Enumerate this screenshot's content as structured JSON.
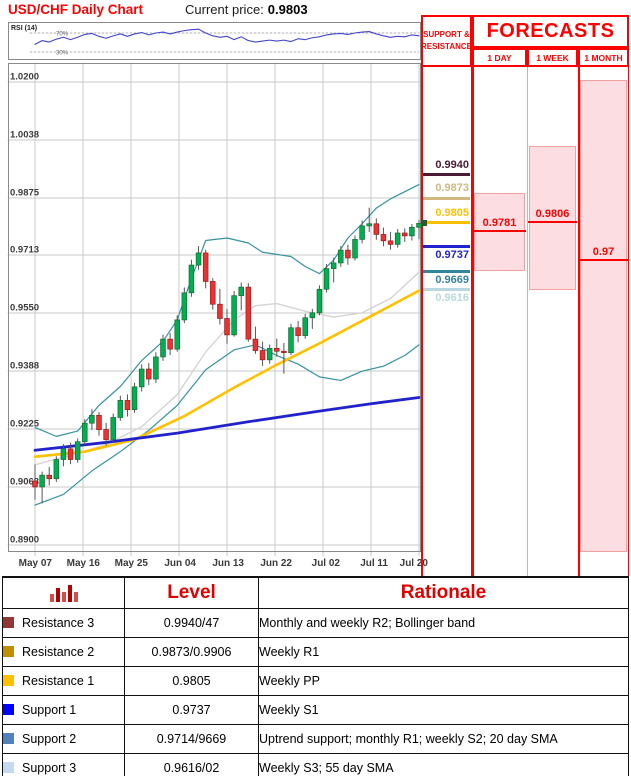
{
  "header": {
    "title": "USD/CHF Daily Chart",
    "current_price_label": "Current price:",
    "current_price": "0.9803"
  },
  "rsi_panel": {
    "label": "RSI (14)",
    "overbought_label": "70%",
    "oversold_label": "30%"
  },
  "chart_data": {
    "type": "candlestick",
    "title": "USD/CHF Daily Chart",
    "x_labels": [
      "May 07",
      "May 16",
      "May 25",
      "Jun 04",
      "Jun 13",
      "Jun 22",
      "Jul 02",
      "Jul 11",
      "Jul 20"
    ],
    "y_ticks": [
      "1.0200",
      "1.0038",
      "0.9875",
      "0.9713",
      "0.9550",
      "0.9388",
      "0.9225",
      "0.9063",
      "0.8900"
    ],
    "ylim": [
      0.8881,
      1.0253
    ],
    "current_price": 0.9803,
    "candles": [
      [
        0.908,
        0.9125,
        0.9028,
        0.9063
      ],
      [
        0.9063,
        0.9105,
        0.9018,
        0.9096
      ],
      [
        0.9096,
        0.9118,
        0.9068,
        0.9086
      ],
      [
        0.9086,
        0.9148,
        0.9078,
        0.914
      ],
      [
        0.914,
        0.9182,
        0.9122,
        0.917
      ],
      [
        0.917,
        0.9186,
        0.9128,
        0.914
      ],
      [
        0.914,
        0.9198,
        0.9132,
        0.919
      ],
      [
        0.919,
        0.9252,
        0.9182,
        0.9242
      ],
      [
        0.9242,
        0.928,
        0.9224,
        0.9264
      ],
      [
        0.9264,
        0.9272,
        0.9208,
        0.9224
      ],
      [
        0.9224,
        0.9242,
        0.918,
        0.9196
      ],
      [
        0.9196,
        0.9268,
        0.9188,
        0.9258
      ],
      [
        0.9258,
        0.9318,
        0.925,
        0.9306
      ],
      [
        0.9306,
        0.9322,
        0.9262,
        0.928
      ],
      [
        0.928,
        0.9354,
        0.9272,
        0.9344
      ],
      [
        0.9344,
        0.9406,
        0.9332,
        0.9394
      ],
      [
        0.9394,
        0.941,
        0.935,
        0.9366
      ],
      [
        0.9366,
        0.944,
        0.9356,
        0.9428
      ],
      [
        0.9428,
        0.949,
        0.9418,
        0.9478
      ],
      [
        0.9478,
        0.9494,
        0.9434,
        0.945
      ],
      [
        0.945,
        0.9544,
        0.9444,
        0.9532
      ],
      [
        0.9532,
        0.9622,
        0.9524,
        0.9608
      ],
      [
        0.9608,
        0.97,
        0.9598,
        0.9686
      ],
      [
        0.9686,
        0.9738,
        0.9674,
        0.972
      ],
      [
        0.972,
        0.9728,
        0.9622,
        0.964
      ],
      [
        0.964,
        0.9648,
        0.9562,
        0.9576
      ],
      [
        0.9576,
        0.9618,
        0.952,
        0.9536
      ],
      [
        0.9536,
        0.9562,
        0.9466,
        0.949
      ],
      [
        0.949,
        0.9612,
        0.9486,
        0.96
      ],
      [
        0.96,
        0.9636,
        0.956,
        0.9624
      ],
      [
        0.9624,
        0.9634,
        0.9472,
        0.9478
      ],
      [
        0.9478,
        0.9512,
        0.9438,
        0.9446
      ],
      [
        0.9446,
        0.947,
        0.9404,
        0.942
      ],
      [
        0.942,
        0.9462,
        0.941,
        0.9452
      ],
      [
        0.9452,
        0.9478,
        0.943,
        0.9444
      ],
      [
        0.9444,
        0.9466,
        0.9382,
        0.944
      ],
      [
        0.944,
        0.952,
        0.9434,
        0.951
      ],
      [
        0.951,
        0.9528,
        0.947,
        0.9488
      ],
      [
        0.9488,
        0.9548,
        0.948,
        0.9538
      ],
      [
        0.9538,
        0.9562,
        0.9508,
        0.9552
      ],
      [
        0.9552,
        0.9628,
        0.9546,
        0.9618
      ],
      [
        0.9618,
        0.9688,
        0.961,
        0.9676
      ],
      [
        0.9676,
        0.9706,
        0.9638,
        0.9692
      ],
      [
        0.9692,
        0.9738,
        0.9682,
        0.9728
      ],
      [
        0.9728,
        0.9742,
        0.9688,
        0.9706
      ],
      [
        0.9706,
        0.9768,
        0.97,
        0.9758
      ],
      [
        0.9758,
        0.981,
        0.9748,
        0.9796
      ],
      [
        0.9796,
        0.9846,
        0.978,
        0.9802
      ],
      [
        0.9802,
        0.9816,
        0.9758,
        0.9772
      ],
      [
        0.9772,
        0.979,
        0.974,
        0.9754
      ],
      [
        0.9754,
        0.9778,
        0.973,
        0.9744
      ],
      [
        0.9744,
        0.9786,
        0.9736,
        0.9776
      ],
      [
        0.9776,
        0.9788,
        0.9752,
        0.9768
      ],
      [
        0.9768,
        0.98,
        0.9756,
        0.9792
      ],
      [
        0.9792,
        0.9812,
        0.976,
        0.9803
      ]
    ],
    "overlays": {
      "bollinger_upper": [
        [
          0,
          0.923
        ],
        [
          3,
          0.9205
        ],
        [
          6,
          0.922
        ],
        [
          9,
          0.9292
        ],
        [
          12,
          0.9345
        ],
        [
          15,
          0.9418
        ],
        [
          18,
          0.9472
        ],
        [
          20,
          0.9532
        ],
        [
          22,
          0.9648
        ],
        [
          24,
          0.9755
        ],
        [
          27,
          0.9762
        ],
        [
          30,
          0.9748
        ],
        [
          32,
          0.9722
        ],
        [
          34,
          0.9716
        ],
        [
          36,
          0.971
        ],
        [
          38,
          0.9682
        ],
        [
          40,
          0.9662
        ],
        [
          42,
          0.97
        ],
        [
          44,
          0.9762
        ],
        [
          46,
          0.9802
        ],
        [
          48,
          0.9846
        ],
        [
          50,
          0.9872
        ],
        [
          52,
          0.9892
        ],
        [
          54,
          0.9912
        ]
      ],
      "bollinger_lower": [
        [
          0,
          0.9012
        ],
        [
          4,
          0.9042
        ],
        [
          8,
          0.9108
        ],
        [
          12,
          0.9162
        ],
        [
          16,
          0.9222
        ],
        [
          20,
          0.9292
        ],
        [
          24,
          0.9392
        ],
        [
          28,
          0.9448
        ],
        [
          31,
          0.9462
        ],
        [
          34,
          0.9432
        ],
        [
          37,
          0.9408
        ],
        [
          40,
          0.9372
        ],
        [
          43,
          0.9362
        ],
        [
          46,
          0.9388
        ],
        [
          49,
          0.9402
        ],
        [
          52,
          0.9432
        ],
        [
          54,
          0.9462
        ]
      ],
      "sma20": [
        [
          0,
          0.9125
        ],
        [
          5,
          0.9152
        ],
        [
          10,
          0.9182
        ],
        [
          15,
          0.9232
        ],
        [
          20,
          0.9322
        ],
        [
          24,
          0.9442
        ],
        [
          28,
          0.9532
        ],
        [
          31,
          0.9572
        ],
        [
          34,
          0.9578
        ],
        [
          38,
          0.9556
        ],
        [
          42,
          0.954
        ],
        [
          46,
          0.9552
        ],
        [
          50,
          0.9592
        ],
        [
          54,
          0.9666
        ]
      ],
      "sma55": [
        [
          0,
          0.9148
        ],
        [
          7,
          0.9162
        ],
        [
          14,
          0.9196
        ],
        [
          21,
          0.9262
        ],
        [
          28,
          0.9342
        ],
        [
          34,
          0.9406
        ],
        [
          40,
          0.9466
        ],
        [
          47,
          0.954
        ],
        [
          54,
          0.9614
        ]
      ],
      "sma_long": [
        [
          0,
          0.9166
        ],
        [
          10,
          0.9188
        ],
        [
          20,
          0.9214
        ],
        [
          30,
          0.9246
        ],
        [
          40,
          0.9276
        ],
        [
          47,
          0.9296
        ],
        [
          54,
          0.9314
        ]
      ]
    },
    "rsi": {
      "overbought": 70,
      "oversold": 30,
      "values": [
        46,
        54,
        51,
        57,
        61,
        56,
        61,
        67,
        69,
        63,
        59,
        64,
        68,
        63,
        68,
        71,
        66,
        70,
        72,
        68,
        72,
        75,
        77,
        78,
        70,
        64,
        61,
        63,
        56,
        62,
        54,
        51,
        53,
        55,
        53,
        55,
        52,
        58,
        56,
        60,
        62,
        66,
        68,
        69,
        67,
        70,
        72,
        73,
        68,
        64,
        61,
        63,
        62,
        66,
        64
      ]
    }
  },
  "support_resistance": {
    "header_line1": "SUPPORT &",
    "header_line2": "RESISTANCE",
    "levels": [
      {
        "name": "Resistance 3",
        "label": "0.9940",
        "price": 0.994,
        "color": "#4a1b33",
        "side": "above"
      },
      {
        "name": "Resistance 2",
        "label": "0.9873",
        "price": 0.9873,
        "color": "#cdb97f",
        "side": "above"
      },
      {
        "name": "Resistance 1",
        "label": "0.9805",
        "price": 0.9805,
        "color": "#ffc000",
        "side": "above"
      },
      {
        "name": "Support 1",
        "label": "0.9737",
        "price": 0.9737,
        "color": "#2323cd",
        "side": "below"
      },
      {
        "name": "Support 2",
        "label": "0.9669",
        "price": 0.9669,
        "color": "#31859c",
        "side": "below"
      },
      {
        "name": "Support 3",
        "label": "0.9616",
        "price": 0.9616,
        "color": "#b8d8e0",
        "side": "below"
      }
    ]
  },
  "forecasts": {
    "title": "FORECASTS",
    "columns": [
      {
        "label": "1 DAY",
        "value": "0.9781",
        "price": 0.9781,
        "range_high": 0.9888,
        "range_low": 0.9669
      },
      {
        "label": "1 WEEK",
        "value": "0.9806",
        "price": 0.9806,
        "range_high": 1.002,
        "range_low": 0.9616
      },
      {
        "label": "1 MONTH",
        "value": "0.97",
        "price": 0.97,
        "range_high": 1.0206,
        "range_low": 0.8881
      }
    ]
  },
  "table": {
    "icon": "bar-chart-icon",
    "level_header": "Level",
    "rationale_header": "Rationale",
    "rows": [
      {
        "name": "Resistance 3",
        "swatch": "#953735",
        "level": "0.9940/47",
        "rationale": "Monthly and weekly R2; Bollinger band"
      },
      {
        "name": "Resistance 2",
        "swatch": "#bf8f00",
        "level": "0.9873/0.9906",
        "rationale": "Weekly R1"
      },
      {
        "name": "Resistance 1",
        "swatch": "#ffc000",
        "level": "0.9805",
        "rationale": "Weekly PP"
      },
      {
        "name": "Support 1",
        "swatch": "#0000ff",
        "level": "0.9737",
        "rationale": "Weekly S1"
      },
      {
        "name": "Support 2",
        "swatch": "#4f81bd",
        "level": "0.9714/9669",
        "rationale": "Uptrend support; monthly R1; weekly S2; 20 day SMA"
      },
      {
        "name": "Support 3",
        "swatch": "#c5d9f1",
        "level": "0.9616/02",
        "rationale": "Weekly S3; 55 day SMA"
      }
    ]
  },
  "colors": {
    "accent_red": "#ff0000",
    "forecast_fill": "#fcdee2",
    "candle_up": "#00b050",
    "candle_down": "#e93232",
    "bollinger": "#35939f",
    "sma20_gray": "#d4d4d4",
    "sma55_yellow": "#ffc000",
    "sma_long_blue": "#2222cc",
    "rsi_line": "#4444cc",
    "current_price_marker": "#2d5a27"
  }
}
